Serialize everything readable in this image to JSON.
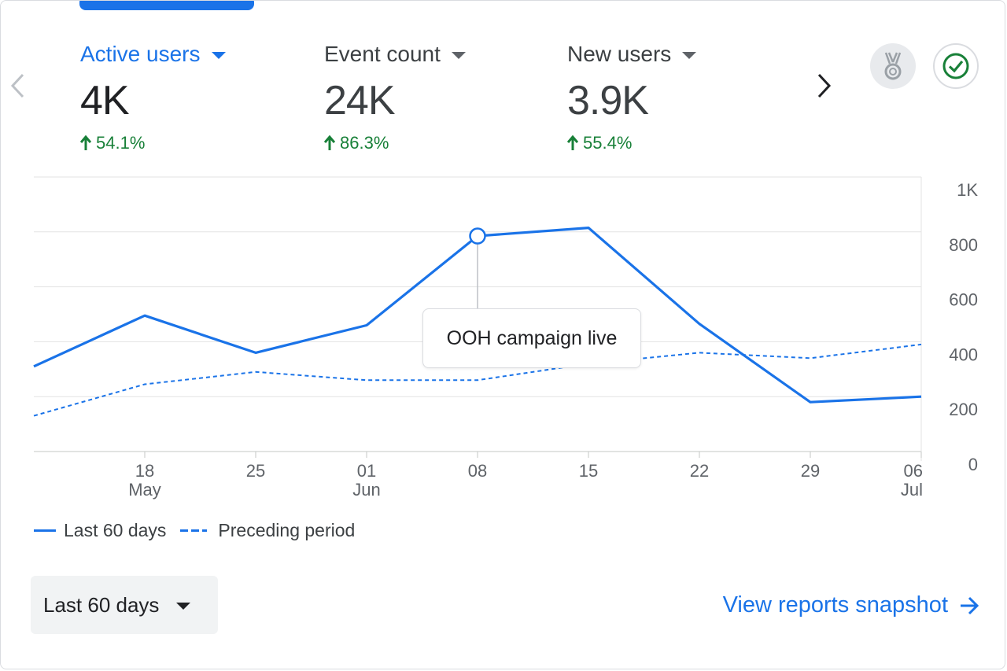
{
  "metrics": [
    {
      "label": "Active users",
      "value": "4K",
      "change": "54.1%",
      "active": true
    },
    {
      "label": "Event count",
      "value": "24K",
      "change": "86.3%",
      "active": false
    },
    {
      "label": "New users",
      "value": "3.9K",
      "change": "55.4%",
      "active": false
    }
  ],
  "icons": {
    "prev": "chevron-left-icon",
    "next": "chevron-right-icon",
    "badge": "medal-icon",
    "status": "check-circle-icon",
    "change": "arrow-up-icon"
  },
  "colors": {
    "accent": "#1a73e8",
    "positive": "#188038"
  },
  "chart_data": {
    "type": "line",
    "x": [
      "2024-05-11",
      "2024-05-18",
      "2024-05-25",
      "2024-06-01",
      "2024-06-08",
      "2024-06-15",
      "2024-06-22",
      "2024-06-29",
      "2024-07-06"
    ],
    "series": [
      {
        "name": "Last 60 days",
        "style": "solid",
        "values": [
          310,
          495,
          360,
          460,
          785,
          815,
          465,
          180,
          200
        ]
      },
      {
        "name": "Preceding period",
        "style": "dashed",
        "values": [
          130,
          245,
          290,
          260,
          260,
          320,
          360,
          340,
          390
        ]
      }
    ],
    "x_tick_labels": [
      {
        "date": "2024-05-18",
        "day": "18",
        "month": "May"
      },
      {
        "date": "2024-05-25",
        "day": "25",
        "month": ""
      },
      {
        "date": "2024-06-01",
        "day": "01",
        "month": "Jun"
      },
      {
        "date": "2024-06-08",
        "day": "08",
        "month": ""
      },
      {
        "date": "2024-06-15",
        "day": "15",
        "month": ""
      },
      {
        "date": "2024-06-22",
        "day": "22",
        "month": ""
      },
      {
        "date": "2024-06-29",
        "day": "29",
        "month": ""
      },
      {
        "date": "2024-07-06",
        "day": "06",
        "month": "Jul"
      }
    ],
    "y_ticks": [
      0,
      200,
      400,
      600,
      800,
      1000
    ],
    "y_tick_labels": [
      "0",
      "200",
      "400",
      "600",
      "800",
      "1K"
    ],
    "ylim": [
      0,
      1000
    ],
    "y_axis_side": "right",
    "grid": true,
    "annotation": {
      "date": "2024-06-08",
      "value": 785,
      "text": "OOH campaign live"
    },
    "legend_position": "bottom-left"
  },
  "legend": {
    "solid_label": "Last 60 days",
    "dashed_label": "Preceding period"
  },
  "date_range": {
    "label": "Last 60 days"
  },
  "footer": {
    "snapshot_link": "View reports snapshot"
  }
}
